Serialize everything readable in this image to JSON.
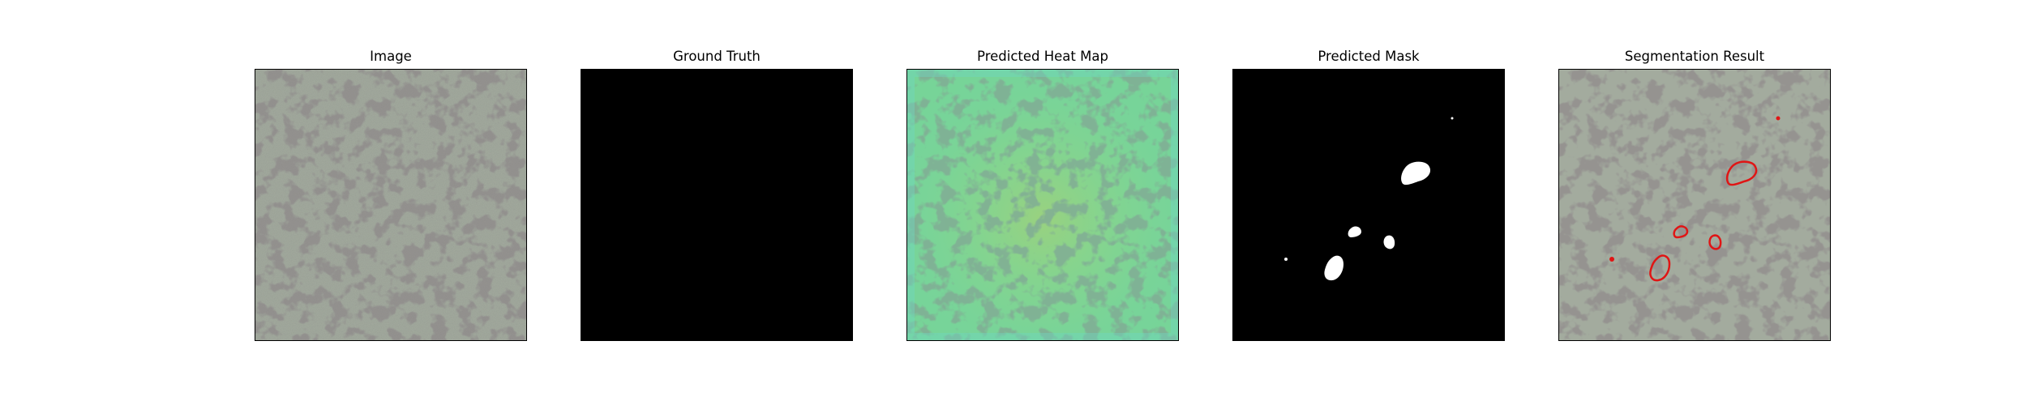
{
  "figure": {
    "panels": [
      {
        "title": "Image",
        "kind": "texture-image"
      },
      {
        "title": "Ground Truth",
        "kind": "empty-mask"
      },
      {
        "title": "Predicted Heat Map",
        "kind": "heatmap-overlay"
      },
      {
        "title": "Predicted Mask",
        "kind": "binary-mask"
      },
      {
        "title": "Segmentation Result",
        "kind": "contour-overlay"
      }
    ],
    "colors": {
      "texture_base": "#a3ab9e",
      "texture_dark": "#4d4b47",
      "heatmap_tint": "#77d498",
      "heatmap_warm": "#b6cf6a",
      "mask_background": "#000000",
      "mask_foreground": "#ffffff",
      "contour": "#e01515"
    }
  }
}
